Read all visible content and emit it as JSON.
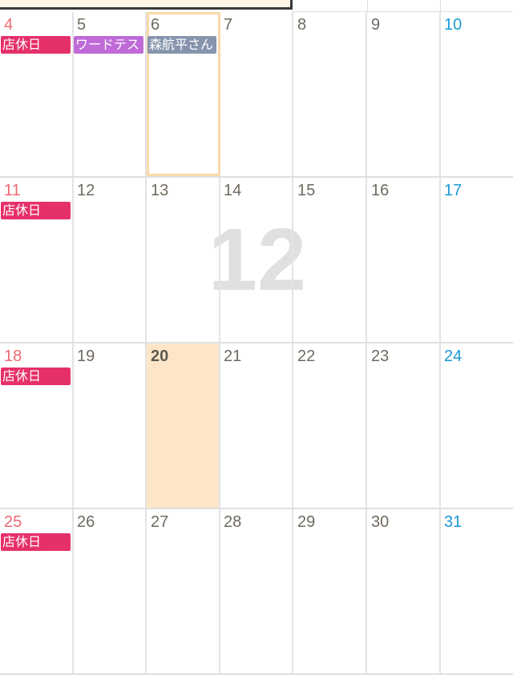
{
  "watermark": {
    "month": "12"
  },
  "colors": {
    "sunday": "#ec6a72",
    "saturday": "#1a9ad6",
    "weekday": "#6f6a5f",
    "today_bg": "#fde6c8",
    "holiday_event": "#e6306a"
  },
  "weeks": [
    {
      "days": [
        {
          "num": "4",
          "kind": "sunday",
          "events": [
            {
              "label": "店休日",
              "color": "#e6306a"
            }
          ]
        },
        {
          "num": "5",
          "kind": "weekday",
          "events": [
            {
              "label": "ワードテスト",
              "color": "#c06ad8"
            }
          ]
        },
        {
          "num": "6",
          "kind": "weekday",
          "selected": true,
          "events": [
            {
              "label": "森航平さん",
              "color": "#8694ad"
            }
          ]
        },
        {
          "num": "7",
          "kind": "weekday",
          "events": []
        },
        {
          "num": "8",
          "kind": "weekday",
          "events": []
        },
        {
          "num": "9",
          "kind": "weekday",
          "events": []
        },
        {
          "num": "10",
          "kind": "saturday",
          "events": []
        }
      ]
    },
    {
      "days": [
        {
          "num": "11",
          "kind": "sunday",
          "events": [
            {
              "label": "店休日",
              "color": "#e6306a"
            }
          ]
        },
        {
          "num": "12",
          "kind": "weekday",
          "events": []
        },
        {
          "num": "13",
          "kind": "weekday",
          "events": []
        },
        {
          "num": "14",
          "kind": "weekday",
          "events": []
        },
        {
          "num": "15",
          "kind": "weekday",
          "events": []
        },
        {
          "num": "16",
          "kind": "weekday",
          "events": []
        },
        {
          "num": "17",
          "kind": "saturday",
          "events": []
        }
      ]
    },
    {
      "days": [
        {
          "num": "18",
          "kind": "sunday",
          "events": [
            {
              "label": "店休日",
              "color": "#e6306a"
            }
          ]
        },
        {
          "num": "19",
          "kind": "weekday",
          "events": []
        },
        {
          "num": "20",
          "kind": "weekday",
          "today": true,
          "events": []
        },
        {
          "num": "21",
          "kind": "weekday",
          "events": []
        },
        {
          "num": "22",
          "kind": "weekday",
          "events": []
        },
        {
          "num": "23",
          "kind": "weekday",
          "events": []
        },
        {
          "num": "24",
          "kind": "saturday",
          "events": []
        }
      ]
    },
    {
      "days": [
        {
          "num": "25",
          "kind": "sunday",
          "events": [
            {
              "label": "店休日",
              "color": "#e6306a"
            }
          ]
        },
        {
          "num": "26",
          "kind": "weekday",
          "events": []
        },
        {
          "num": "27",
          "kind": "weekday",
          "events": []
        },
        {
          "num": "28",
          "kind": "weekday",
          "events": []
        },
        {
          "num": "29",
          "kind": "weekday",
          "events": []
        },
        {
          "num": "30",
          "kind": "weekday",
          "events": []
        },
        {
          "num": "31",
          "kind": "saturday",
          "events": []
        }
      ]
    }
  ]
}
